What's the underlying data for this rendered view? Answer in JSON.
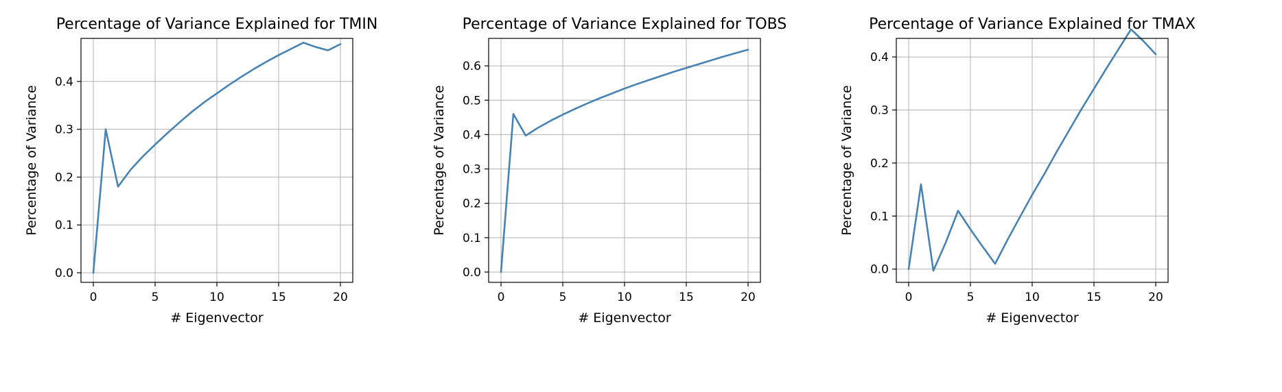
{
  "chart_data": [
    {
      "type": "line",
      "title": "Percentage of Variance Explained for TMIN",
      "xlabel": "# Eigenvector",
      "ylabel": "Percentage of Variance",
      "xlim": [
        -1,
        21
      ],
      "ylim": [
        -0.02,
        0.49
      ],
      "xticks": [
        0,
        5,
        10,
        15,
        20
      ],
      "yticks": [
        0.0,
        0.1,
        0.2,
        0.3,
        0.4
      ],
      "grid": true,
      "series_color": "#4682b4",
      "x": [
        0,
        1,
        2,
        3,
        4,
        5,
        6,
        7,
        8,
        9,
        10,
        11,
        12,
        13,
        14,
        15,
        16,
        17,
        18,
        19,
        20
      ],
      "y": [
        0.0,
        0.3,
        0.18,
        0.215,
        0.243,
        0.268,
        0.292,
        0.315,
        0.337,
        0.357,
        0.375,
        0.393,
        0.41,
        0.426,
        0.441,
        0.455,
        0.468,
        0.481,
        0.472,
        0.465,
        0.478
      ]
    },
    {
      "type": "line",
      "title": "Percentage of Variance Explained for TOBS",
      "xlabel": "# Eigenvector",
      "ylabel": "Percentage of Variance",
      "xlim": [
        -1,
        21
      ],
      "ylim": [
        -0.03,
        0.68
      ],
      "xticks": [
        0,
        5,
        10,
        15,
        20
      ],
      "yticks": [
        0.0,
        0.1,
        0.2,
        0.3,
        0.4,
        0.5,
        0.6
      ],
      "grid": true,
      "series_color": "#4682b4",
      "x": [
        0,
        1,
        2,
        3,
        4,
        5,
        6,
        7,
        8,
        9,
        10,
        11,
        12,
        13,
        14,
        15,
        16,
        17,
        18,
        19,
        20
      ],
      "y": [
        0.0,
        0.46,
        0.397,
        0.42,
        0.44,
        0.458,
        0.475,
        0.491,
        0.506,
        0.52,
        0.534,
        0.547,
        0.559,
        0.571,
        0.583,
        0.594,
        0.605,
        0.616,
        0.627,
        0.637,
        0.647
      ]
    },
    {
      "type": "line",
      "title": "Percentage of Variance Explained for TMAX",
      "xlabel": "# Eigenvector",
      "ylabel": "Percentage of Variance",
      "xlim": [
        -1,
        21
      ],
      "ylim": [
        -0.025,
        0.435
      ],
      "xticks": [
        0,
        5,
        10,
        15,
        20
      ],
      "yticks": [
        0.0,
        0.1,
        0.2,
        0.3,
        0.4
      ],
      "grid": true,
      "series_color": "#4682b4",
      "x": [
        0,
        1,
        2,
        3,
        4,
        5,
        6,
        7,
        8,
        9,
        10,
        11,
        12,
        13,
        14,
        15,
        16,
        17,
        18,
        19,
        20
      ],
      "y": [
        0.0,
        0.16,
        -0.003,
        0.05,
        0.11,
        0.075,
        0.042,
        0.01,
        0.055,
        0.098,
        0.14,
        0.18,
        0.222,
        0.262,
        0.302,
        0.34,
        0.378,
        0.415,
        0.452,
        0.43,
        0.405
      ]
    }
  ]
}
